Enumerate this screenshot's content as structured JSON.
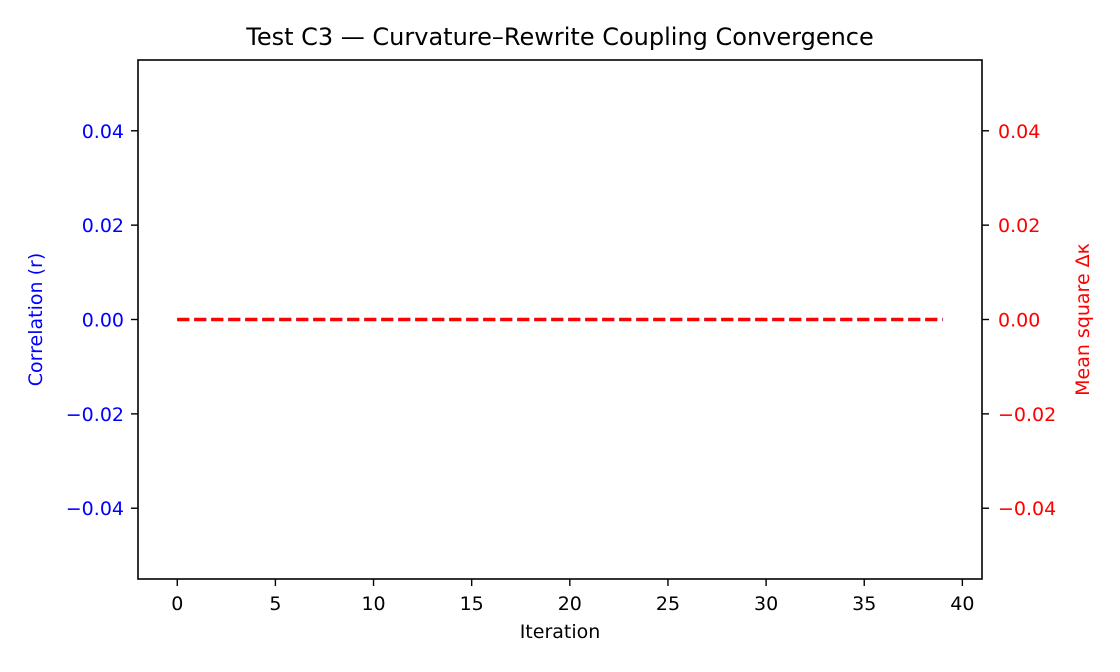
{
  "chart_data": {
    "type": "line",
    "title": "Test C3 — Curvature–Rewrite Coupling Convergence",
    "xlabel": "Iteration",
    "ylabel_left": "Correlation (r)",
    "ylabel_right": "Mean square Δκ",
    "xlim": [
      -2,
      41
    ],
    "ylim_left": [
      -0.055,
      0.055
    ],
    "ylim_right": [
      -0.055,
      0.055
    ],
    "x_ticks": [
      0,
      5,
      10,
      15,
      20,
      25,
      30,
      35,
      40
    ],
    "x_tick_labels": [
      "0",
      "5",
      "10",
      "15",
      "20",
      "25",
      "30",
      "35",
      "40"
    ],
    "y_ticks_left": [
      0.04,
      0.02,
      0.0,
      -0.02,
      -0.04
    ],
    "y_tick_labels_left": [
      "0.04",
      "0.02",
      "0.00",
      "−0.02",
      "−0.04"
    ],
    "y_ticks_right": [
      0.04,
      0.02,
      0.0,
      -0.02,
      -0.04
    ],
    "y_tick_labels_right": [
      "0.04",
      "0.02",
      "0.00",
      "−0.02",
      "−0.04"
    ],
    "grid": false,
    "legend": "none",
    "series": [
      {
        "axis": "left",
        "color": "#0000ff",
        "style": "dashed",
        "x": [
          0,
          1,
          2,
          3,
          4,
          5,
          6,
          7,
          8,
          9,
          10,
          11,
          12,
          13,
          14,
          15,
          16,
          17,
          18,
          19,
          20,
          21,
          22,
          23,
          24,
          25,
          26,
          27,
          28,
          29,
          30,
          31,
          32,
          33,
          34,
          35,
          36,
          37,
          38,
          39
        ],
        "values": [
          0,
          0,
          0,
          0,
          0,
          0,
          0,
          0,
          0,
          0,
          0,
          0,
          0,
          0,
          0,
          0,
          0,
          0,
          0,
          0,
          0,
          0,
          0,
          0,
          0,
          0,
          0,
          0,
          0,
          0,
          0,
          0,
          0,
          0,
          0,
          0,
          0,
          0,
          0,
          0
        ]
      },
      {
        "axis": "right",
        "color": "#ff0000",
        "style": "dashed",
        "x": [
          0,
          1,
          2,
          3,
          4,
          5,
          6,
          7,
          8,
          9,
          10,
          11,
          12,
          13,
          14,
          15,
          16,
          17,
          18,
          19,
          20,
          21,
          22,
          23,
          24,
          25,
          26,
          27,
          28,
          29,
          30,
          31,
          32,
          33,
          34,
          35,
          36,
          37,
          38,
          39
        ],
        "values": [
          0,
          0,
          0,
          0,
          0,
          0,
          0,
          0,
          0,
          0,
          0,
          0,
          0,
          0,
          0,
          0,
          0,
          0,
          0,
          0,
          0,
          0,
          0,
          0,
          0,
          0,
          0,
          0,
          0,
          0,
          0,
          0,
          0,
          0,
          0,
          0,
          0,
          0,
          0,
          0
        ]
      }
    ],
    "colors": {
      "left_axis": "#0000ff",
      "right_axis": "#ff0000",
      "frame": "#000000"
    }
  }
}
